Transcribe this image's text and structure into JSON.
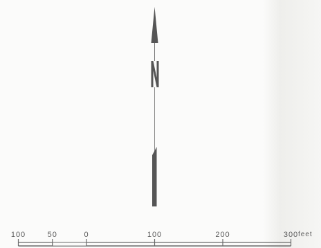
{
  "north_arrow": {
    "letter": "N",
    "icon": "north-arrow-icon",
    "color": "#555555"
  },
  "scale": {
    "ticks": [
      {
        "label": "100",
        "value": -100
      },
      {
        "label": "50",
        "value": -50
      },
      {
        "label": "0",
        "value": 0
      },
      {
        "label": "100",
        "value": 100
      },
      {
        "label": "200",
        "value": 200
      },
      {
        "label": "300",
        "value": 300
      }
    ],
    "unit": "feet",
    "color": "#6a6a6a"
  }
}
